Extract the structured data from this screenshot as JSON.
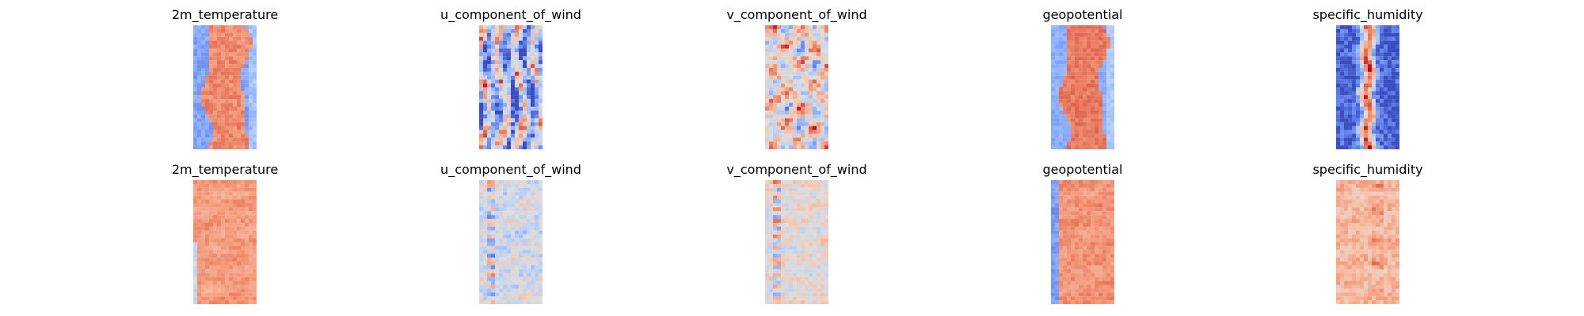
{
  "colormap": {
    "name": "coolwarm",
    "stops": [
      "#3b4cc0",
      "#6282ea",
      "#8db0fe",
      "#b8d0f9",
      "#dcdddd",
      "#f5c4ad",
      "#f49a7b",
      "#de604d",
      "#b40426"
    ]
  },
  "chart_data": [
    {
      "type": "heatmap",
      "title": "2m_temperature",
      "row": 1,
      "col": 1,
      "grid": false,
      "pattern": "warm-central-band",
      "band_level": 0.78,
      "edge_level": 0.22,
      "noise": 0.06
    },
    {
      "type": "heatmap",
      "title": "u_component_of_wind",
      "row": 1,
      "col": 2,
      "grid": false,
      "pattern": "mixed-streaks",
      "band_level": 0.35,
      "edge_level": 0.4,
      "noise": 0.22
    },
    {
      "type": "heatmap",
      "title": "v_component_of_wind",
      "row": 1,
      "col": 3,
      "grid": false,
      "pattern": "mixed-blobs",
      "band_level": 0.55,
      "edge_level": 0.5,
      "noise": 0.18
    },
    {
      "type": "heatmap",
      "title": "geopotential",
      "row": 1,
      "col": 4,
      "grid": false,
      "pattern": "warm-central-band",
      "band_level": 0.82,
      "edge_level": 0.25,
      "noise": 0.05
    },
    {
      "type": "heatmap",
      "title": "specific_humidity",
      "row": 1,
      "col": 5,
      "grid": false,
      "pattern": "narrow-hot-core",
      "band_level": 0.85,
      "edge_level": 0.05,
      "noise": 0.12
    },
    {
      "type": "heatmap",
      "title": "2m_temperature",
      "row": 2,
      "col": 1,
      "grid": false,
      "pattern": "warm-fill",
      "band_level": 0.74,
      "edge_level": 0.42,
      "noise": 0.05
    },
    {
      "type": "heatmap",
      "title": "u_component_of_wind",
      "row": 2,
      "col": 2,
      "grid": false,
      "pattern": "near-neutral-speckle",
      "band_level": 0.46,
      "edge_level": 0.4,
      "noise": 0.12
    },
    {
      "type": "heatmap",
      "title": "v_component_of_wind",
      "row": 2,
      "col": 3,
      "grid": false,
      "pattern": "near-neutral-speckle",
      "band_level": 0.52,
      "edge_level": 0.48,
      "noise": 0.1
    },
    {
      "type": "heatmap",
      "title": "geopotential",
      "row": 2,
      "col": 4,
      "grid": false,
      "pattern": "warm-fill-cold-left",
      "band_level": 0.76,
      "edge_level": 0.2,
      "noise": 0.05
    },
    {
      "type": "heatmap",
      "title": "specific_humidity",
      "row": 2,
      "col": 5,
      "grid": false,
      "pattern": "light-warm-fill",
      "band_level": 0.66,
      "edge_level": 0.5,
      "noise": 0.08
    }
  ]
}
